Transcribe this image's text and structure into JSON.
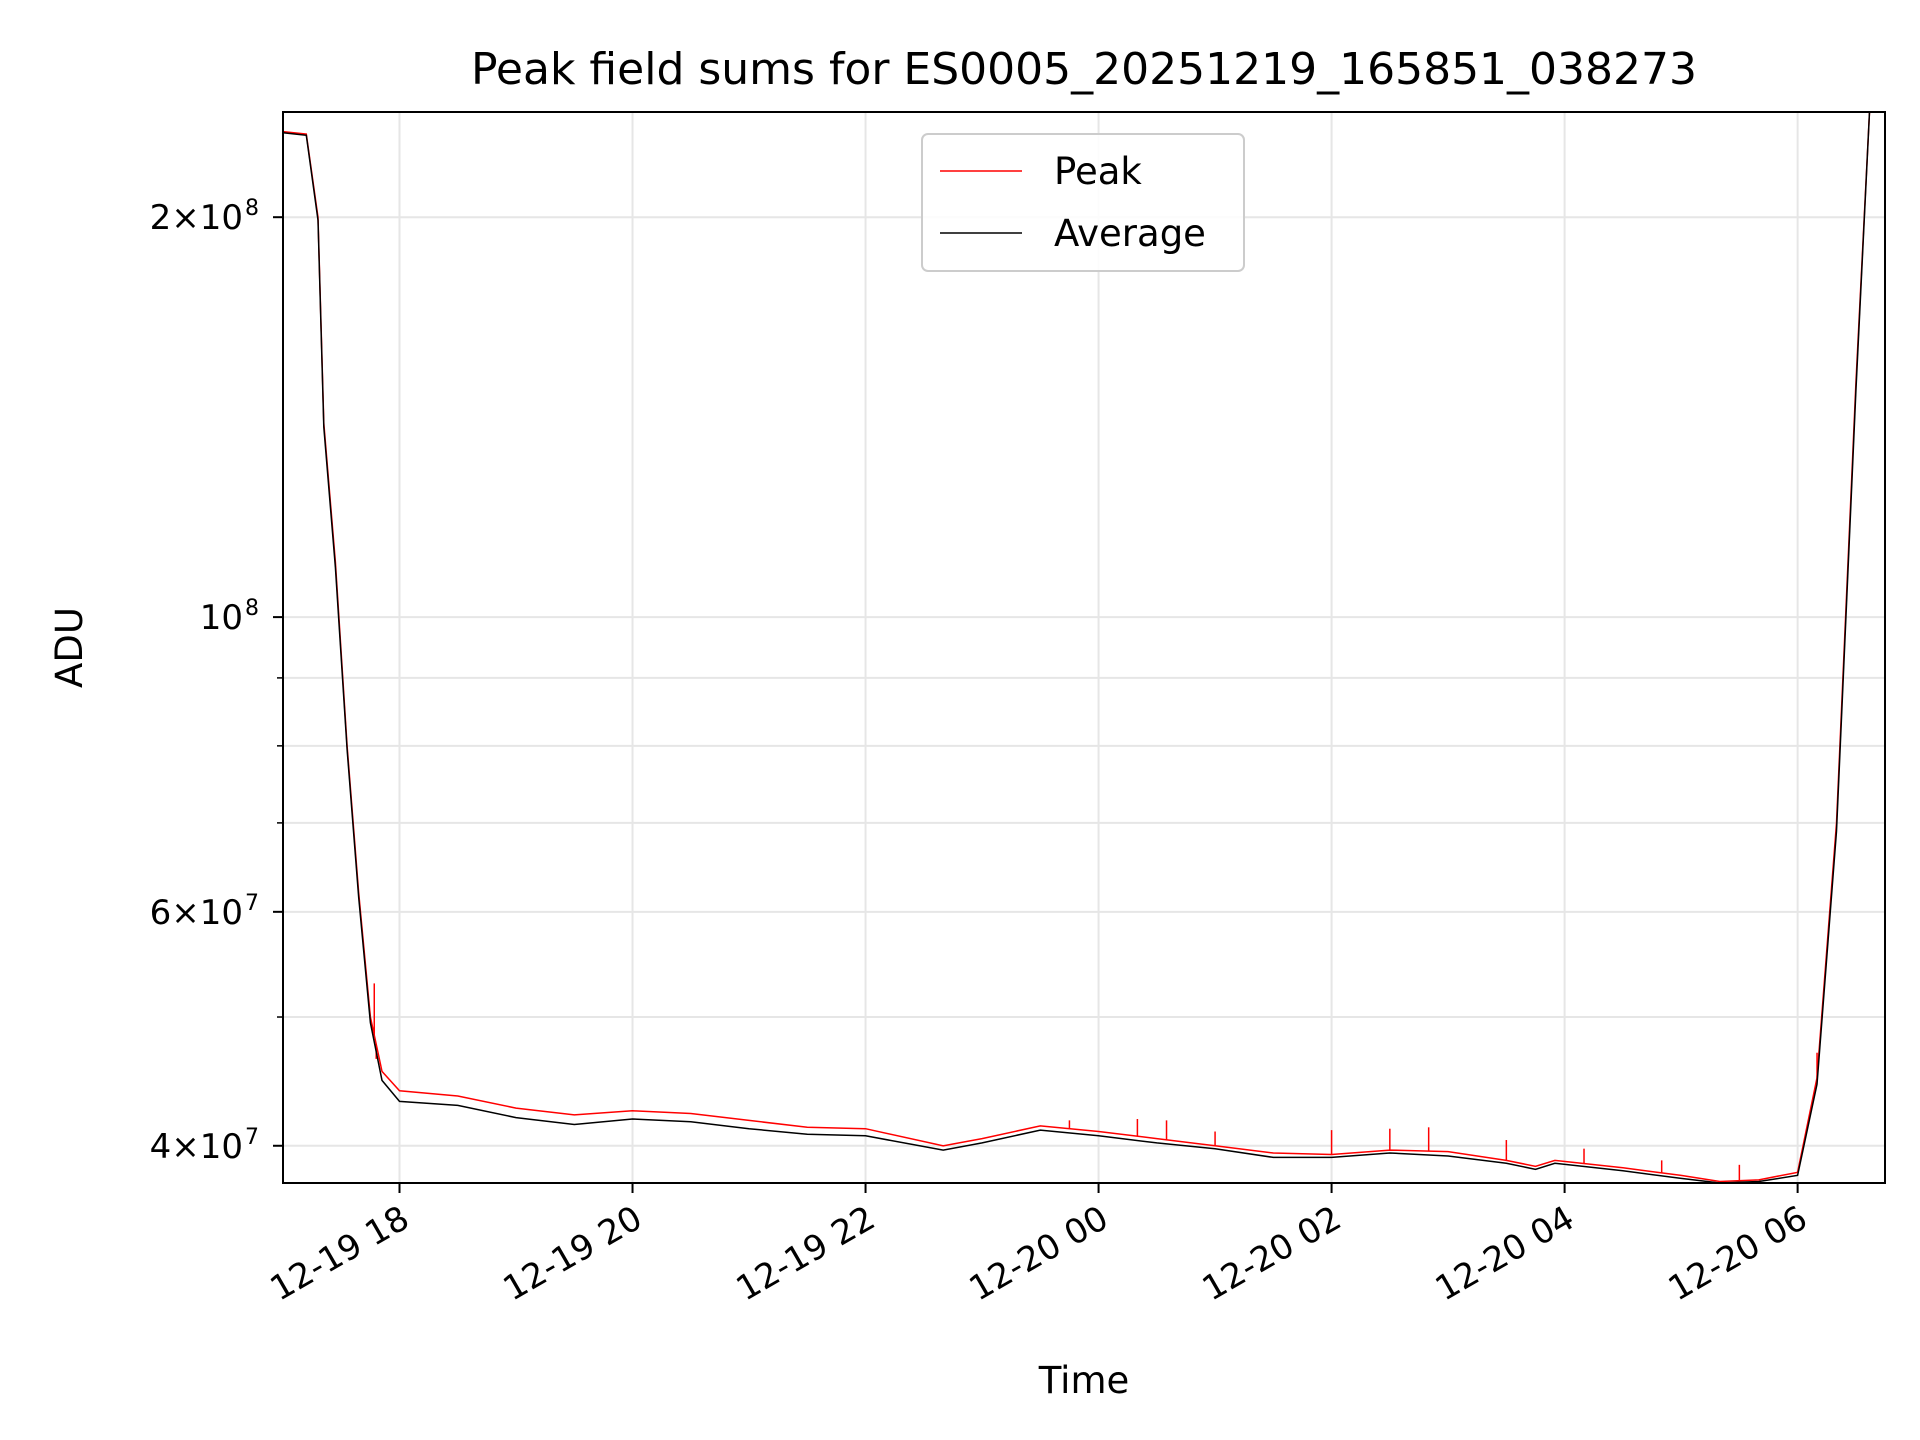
{
  "chart_data": {
    "type": "line",
    "title": "Peak field sums for ES0005_20251219_165851_038273",
    "xlabel": "Time",
    "ylabel": "ADU",
    "yscale": "log",
    "grid": true,
    "legend_placement": "upper-center",
    "xlim": [
      "2025-12-19 17:00",
      "2025-12-20 06:45"
    ],
    "ylim": [
      37500000,
      240000000
    ],
    "x_ticks": [
      "12-19 18",
      "12-19 20",
      "12-19 22",
      "12-20 00",
      "12-20 02",
      "12-20 04",
      "12-20 06"
    ],
    "y_ticks": [
      {
        "value": 40000000,
        "mantissa": "4",
        "exponent": "7"
      },
      {
        "value": 60000000,
        "mantissa": "6",
        "exponent": "7"
      },
      {
        "value": 100000000,
        "mantissa": "",
        "exponent": "8"
      },
      {
        "value": 200000000,
        "mantissa": "2",
        "exponent": "8"
      }
    ],
    "series": [
      {
        "name": "Peak",
        "color": "#ff0000",
        "points": [
          [
            "2025-12-19 17:00",
            232000000
          ],
          [
            "2025-12-19 17:12",
            231000000
          ],
          [
            "2025-12-19 17:18",
            200000000
          ],
          [
            "2025-12-19 17:21",
            140000000
          ],
          [
            "2025-12-19 17:27",
            110000000
          ],
          [
            "2025-12-19 17:33",
            80000000
          ],
          [
            "2025-12-19 17:39",
            62000000
          ],
          [
            "2025-12-19 17:45",
            50000000
          ],
          [
            "2025-12-19 17:51",
            45500000
          ],
          [
            "2025-12-19 18:00",
            44000000
          ],
          [
            "2025-12-19 18:30",
            43600000
          ],
          [
            "2025-12-19 19:00",
            42700000
          ],
          [
            "2025-12-19 19:30",
            42200000
          ],
          [
            "2025-12-19 20:00",
            42500000
          ],
          [
            "2025-12-19 20:30",
            42300000
          ],
          [
            "2025-12-19 21:00",
            41800000
          ],
          [
            "2025-12-19 21:30",
            41300000
          ],
          [
            "2025-12-19 22:00",
            41200000
          ],
          [
            "2025-12-19 22:40",
            40000000
          ],
          [
            "2025-12-19 23:00",
            40500000
          ],
          [
            "2025-12-19 23:30",
            41400000
          ],
          [
            "2025-12-20 00:00",
            41000000
          ],
          [
            "2025-12-20 00:30",
            40500000
          ],
          [
            "2025-12-20 01:00",
            40000000
          ],
          [
            "2025-12-20 01:30",
            39500000
          ],
          [
            "2025-12-20 02:00",
            39400000
          ],
          [
            "2025-12-20 02:30",
            39700000
          ],
          [
            "2025-12-20 03:00",
            39600000
          ],
          [
            "2025-12-20 03:30",
            39000000
          ],
          [
            "2025-12-20 03:45",
            38600000
          ],
          [
            "2025-12-20 03:55",
            39000000
          ],
          [
            "2025-12-20 04:30",
            38500000
          ],
          [
            "2025-12-20 05:00",
            38000000
          ],
          [
            "2025-12-20 05:20",
            37600000
          ],
          [
            "2025-12-20 05:40",
            37700000
          ],
          [
            "2025-12-20 06:00",
            38200000
          ],
          [
            "2025-12-20 06:10",
            45000000
          ],
          [
            "2025-12-20 06:20",
            70000000
          ],
          [
            "2025-12-20 06:30",
            150000000
          ],
          [
            "2025-12-20 06:37",
            240000000
          ]
        ],
        "spikes": [
          [
            "2025-12-19 17:47",
            53000000
          ],
          [
            "2025-12-19 17:48",
            46500000
          ],
          [
            "2025-12-19 23:45",
            41800000
          ],
          [
            "2025-12-20 00:20",
            41900000
          ],
          [
            "2025-12-20 00:35",
            41800000
          ],
          [
            "2025-12-20 01:00",
            41000000
          ],
          [
            "2025-12-20 02:00",
            41100000
          ],
          [
            "2025-12-20 02:30",
            41200000
          ],
          [
            "2025-12-20 02:50",
            41300000
          ],
          [
            "2025-12-20 03:30",
            40400000
          ],
          [
            "2025-12-20 04:10",
            39800000
          ],
          [
            "2025-12-20 04:50",
            39000000
          ],
          [
            "2025-12-20 05:30",
            38700000
          ],
          [
            "2025-12-20 06:10",
            47000000
          ]
        ]
      },
      {
        "name": "Average",
        "color": "#000000",
        "points": [
          [
            "2025-12-19 17:00",
            231500000
          ],
          [
            "2025-12-19 17:12",
            230500000
          ],
          [
            "2025-12-19 17:18",
            199000000
          ],
          [
            "2025-12-19 17:21",
            139000000
          ],
          [
            "2025-12-19 17:27",
            109000000
          ],
          [
            "2025-12-19 17:33",
            79500000
          ],
          [
            "2025-12-19 17:39",
            61500000
          ],
          [
            "2025-12-19 17:45",
            49500000
          ],
          [
            "2025-12-19 17:51",
            44800000
          ],
          [
            "2025-12-19 18:00",
            43200000
          ],
          [
            "2025-12-19 18:30",
            42900000
          ],
          [
            "2025-12-19 19:00",
            42000000
          ],
          [
            "2025-12-19 19:30",
            41500000
          ],
          [
            "2025-12-19 20:00",
            41900000
          ],
          [
            "2025-12-19 20:30",
            41700000
          ],
          [
            "2025-12-19 21:00",
            41200000
          ],
          [
            "2025-12-19 21:30",
            40800000
          ],
          [
            "2025-12-19 22:00",
            40700000
          ],
          [
            "2025-12-19 22:40",
            39700000
          ],
          [
            "2025-12-19 23:00",
            40200000
          ],
          [
            "2025-12-19 23:30",
            41100000
          ],
          [
            "2025-12-20 00:00",
            40700000
          ],
          [
            "2025-12-20 00:30",
            40200000
          ],
          [
            "2025-12-20 01:00",
            39800000
          ],
          [
            "2025-12-20 01:30",
            39200000
          ],
          [
            "2025-12-20 02:00",
            39200000
          ],
          [
            "2025-12-20 02:30",
            39500000
          ],
          [
            "2025-12-20 03:00",
            39300000
          ],
          [
            "2025-12-20 03:30",
            38800000
          ],
          [
            "2025-12-20 03:45",
            38400000
          ],
          [
            "2025-12-20 03:55",
            38800000
          ],
          [
            "2025-12-20 04:30",
            38300000
          ],
          [
            "2025-12-20 05:00",
            37800000
          ],
          [
            "2025-12-20 05:20",
            37500000
          ],
          [
            "2025-12-20 05:40",
            37600000
          ],
          [
            "2025-12-20 06:00",
            38000000
          ],
          [
            "2025-12-20 06:10",
            44500000
          ],
          [
            "2025-12-20 06:20",
            69000000
          ],
          [
            "2025-12-20 06:30",
            148000000
          ],
          [
            "2025-12-20 06:37",
            240000000
          ]
        ]
      }
    ]
  }
}
